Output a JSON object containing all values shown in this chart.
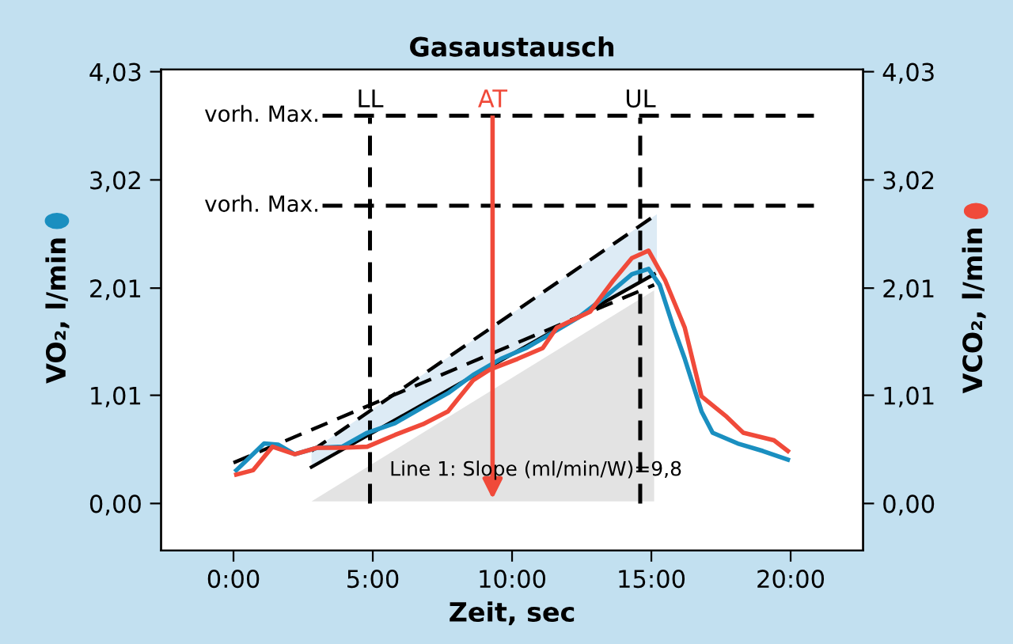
{
  "chart_data": {
    "type": "line",
    "title": "Gasaustausch",
    "xlabel": "Zeit, sec",
    "ylabel": "VO₂, l/min",
    "y2label": "VCO₂, l/min",
    "xlim": [
      -2.6,
      22.6
    ],
    "ylim": [
      -0.44,
      4.05
    ],
    "y2lim": [
      -0.44,
      4.05
    ],
    "xticks": [
      {
        "value": 0,
        "label": "0:00"
      },
      {
        "value": 5,
        "label": "5:00"
      },
      {
        "value": 10,
        "label": "10:00"
      },
      {
        "value": 15,
        "label": "15:00"
      },
      {
        "value": 20,
        "label": "20:00"
      }
    ],
    "yticks": [
      {
        "value": 0,
        "label": "0,00"
      },
      {
        "value": 1.01,
        "label": "1,01"
      },
      {
        "value": 2.01,
        "label": "2,01"
      },
      {
        "value": 3.02,
        "label": "3,02"
      },
      {
        "value": 4.03,
        "label": "4,03"
      }
    ],
    "y2ticks": [
      {
        "value": 0,
        "label": "0,00"
      },
      {
        "value": 1.01,
        "label": "1,01"
      },
      {
        "value": 2.01,
        "label": "2,01"
      },
      {
        "value": 3.02,
        "label": "3,02"
      },
      {
        "value": 4.03,
        "label": "4,03"
      }
    ],
    "grid": false,
    "series": [
      {
        "type": "area",
        "color": "#e3e3e3",
        "x": [
          2.8,
          15.1,
          15.1
        ],
        "values": [
          0.02,
          1.99,
          0.02
        ]
      },
      {
        "color": "#000000",
        "line_style": "dashed",
        "x": [
          2.8,
          15.2
        ],
        "values": [
          0.49,
          2.7
        ],
        "lower": [
          0.34,
          2.14
        ],
        "upper": [
          0.49,
          2.7
        ]
      },
      {
        "color": "#000000",
        "line_style": "dashed",
        "x": [
          0,
          15.1
        ],
        "values": [
          0.38,
          2.04
        ]
      },
      {
        "color": "#000000",
        "line_style": "solid",
        "x": [
          2.8,
          15.1
        ],
        "values": [
          0.34,
          2.14
        ]
      },
      {
        "color": "#1a8fc0",
        "line_style": "solid",
        "x": [
          0.1,
          1.1,
          1.6,
          2.2,
          3.0,
          3.9,
          4.8,
          5.8,
          6.8,
          7.7,
          8.6,
          9.6,
          10.5,
          11.5,
          12.4,
          13.4,
          14.3,
          14.9,
          15.3,
          15.8,
          16.2,
          16.8,
          17.2,
          18.1,
          19.0,
          19.9
        ],
        "values": [
          0.31,
          0.56,
          0.55,
          0.46,
          0.52,
          0.53,
          0.66,
          0.75,
          0.9,
          1.03,
          1.2,
          1.35,
          1.45,
          1.6,
          1.74,
          1.94,
          2.14,
          2.19,
          2.04,
          1.64,
          1.35,
          0.86,
          0.66,
          0.56,
          0.49,
          0.41
        ]
      },
      {
        "axis": "y2",
        "color": "#f04a3a",
        "line_style": "solid",
        "x": [
          0.1,
          0.7,
          1.4,
          2.2,
          3.0,
          3.9,
          4.8,
          5.8,
          6.8,
          7.7,
          8.6,
          9.2,
          10.2,
          11.1,
          11.6,
          12.8,
          13.6,
          14.3,
          14.9,
          15.5,
          16.2,
          16.8,
          17.7,
          18.3,
          19.4,
          19.9
        ],
        "values": [
          0.27,
          0.31,
          0.53,
          0.46,
          0.52,
          0.52,
          0.53,
          0.64,
          0.74,
          0.86,
          1.15,
          1.25,
          1.35,
          1.45,
          1.64,
          1.79,
          2.07,
          2.29,
          2.36,
          2.08,
          1.64,
          1.0,
          0.81,
          0.66,
          0.59,
          0.49
        ]
      }
    ],
    "ref_lines": [
      {
        "axis": "x",
        "value": 4.9,
        "label": "LL",
        "color": "#000000",
        "line_style": "dashed"
      },
      {
        "axis": "x",
        "value": 9.3,
        "label": "AT",
        "color": "#f04a3a",
        "line_style": "solid"
      },
      {
        "axis": "x",
        "value": 14.6,
        "label": "UL",
        "color": "#000000",
        "line_style": "dashed"
      },
      {
        "axis": "y",
        "value": 3.62,
        "label": "vorh. Max.",
        "color": "#000000",
        "line_style": "dashed"
      },
      {
        "axis": "y",
        "value": 2.78,
        "label": "vorh. Max.",
        "color": "#000000",
        "line_style": "dashed"
      }
    ],
    "annotations": [
      {
        "text": "Line 1: Slope (ml/min/W)=9,8",
        "x": 5.6,
        "y": 0.4
      }
    ]
  }
}
